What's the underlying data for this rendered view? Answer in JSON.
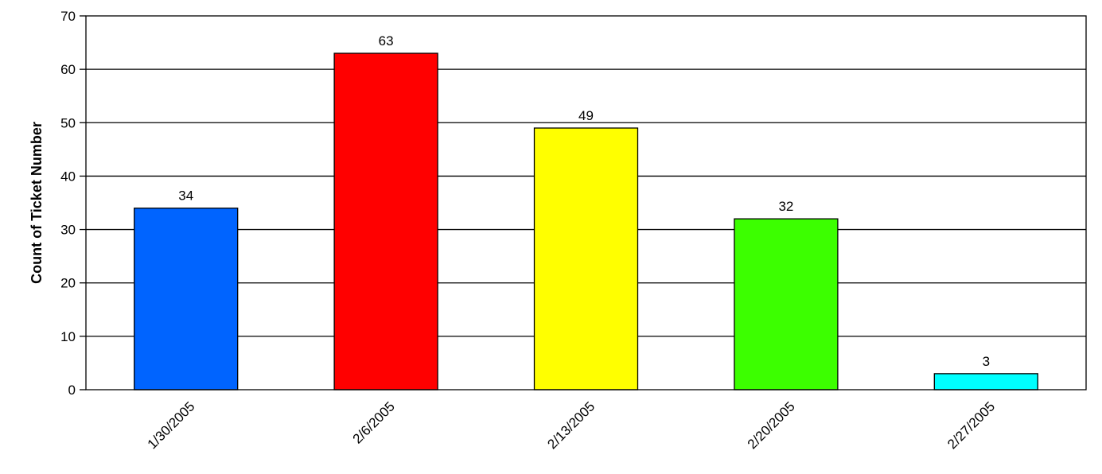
{
  "chart_data": {
    "type": "bar",
    "title": "",
    "xlabel": "",
    "ylabel": "Count of Ticket Number",
    "categories": [
      "1/30/2005",
      "2/6/2005",
      "2/13/2005",
      "2/20/2005",
      "2/27/2005"
    ],
    "values": [
      34,
      63,
      49,
      32,
      3
    ],
    "data_labels": [
      "34",
      "63",
      "49",
      "32",
      "3"
    ],
    "colors": [
      "#0064ff",
      "#ff0000",
      "#ffff00",
      "#3cff00",
      "#00ffff"
    ],
    "ylim": [
      0,
      70
    ],
    "yticks": [
      0,
      10,
      20,
      30,
      40,
      50,
      60,
      70
    ],
    "ytick_labels": [
      "0",
      "10",
      "20",
      "30",
      "40",
      "50",
      "60",
      "70"
    ],
    "grid": true,
    "legend": "none"
  }
}
